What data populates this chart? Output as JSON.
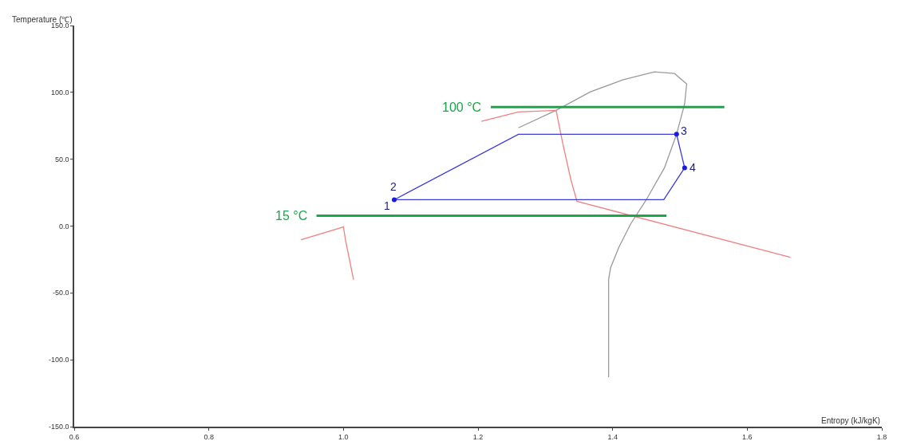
{
  "chart_data": {
    "type": "line",
    "xlabel": "Entropy (kJ/kgK)",
    "ylabel": "Temperature (℃)",
    "xlim": [
      0.6,
      1.8
    ],
    "xticks": [
      0.6,
      0.8,
      {
        "value": 1.0,
        "label": "1.0"
      },
      1.2,
      1.4,
      1.6,
      1.8
    ],
    "ylim": [
      -150,
      150
    ],
    "yticks": [
      {
        "value": -150,
        "label": "-150.0"
      },
      {
        "value": -100,
        "label": "-100.0"
      },
      {
        "value": -50,
        "label": "-50.0"
      },
      {
        "value": 0,
        "label": "0.0"
      },
      {
        "value": 50,
        "label": "50.0"
      },
      {
        "value": 100,
        "label": "100.0"
      },
      {
        "value": 150,
        "label": "150.0"
      }
    ],
    "legend": false,
    "line_style": "solid",
    "series": [
      {
        "color": "#9a9a9a",
        "x": [
          1.26,
          1.316,
          1.367,
          1.415,
          1.462,
          1.492,
          1.51,
          1.507,
          1.495,
          1.477,
          1.45,
          1.427,
          1.409,
          1.397,
          1.394,
          1.394
        ],
        "values": [
          73.5,
          86.6,
          100.4,
          109.3,
          115.3,
          114.1,
          106.3,
          91.4,
          68.7,
          43.6,
          19.7,
          1.8,
          -16.1,
          -31.1,
          -40.0,
          -113.0
        ]
      },
      {
        "color": "#f08080",
        "x": [
          1.205,
          1.26,
          1.316,
          1.326,
          1.338,
          1.347,
          1.664
        ],
        "values": [
          78.3,
          85.4,
          86.6,
          61.5,
          34.6,
          18.5,
          -23.3
        ]
      },
      {
        "color": "#f08080",
        "x": [
          0.937,
          1.0,
          1.003,
          1.015
        ],
        "values": [
          -10.2,
          -0.6,
          -10.2,
          -40.0
        ]
      },
      {
        "name": "100 °C",
        "color": "#1aa64a",
        "x": [
          1.219,
          1.566
        ],
        "values": [
          89,
          89
        ]
      },
      {
        "name": "15 °C",
        "color": "#1aa64a",
        "x": [
          0.96,
          1.48
        ],
        "values": [
          7.8,
          7.8
        ]
      },
      {
        "color": "#3b3bd9",
        "x": [
          1.0755,
          1.26,
          1.495,
          1.507
        ],
        "values": [
          19.7,
          68.7,
          68.7,
          43.6
        ]
      },
      {
        "color": "#3b3bd9",
        "x": [
          1.0755,
          1.476,
          1.507
        ],
        "values": [
          19.7,
          19.7,
          43.6
        ]
      },
      {
        "type": "scatter",
        "marker": "circle",
        "color": "#1a1ae0",
        "x": [
          1.0755,
          1.495,
          1.507
        ],
        "values": [
          19.7,
          68.7,
          43.6
        ]
      }
    ],
    "annotations": [
      {
        "text": "1",
        "x": 1.0755,
        "y": 19.7
      },
      {
        "text": "2",
        "x": 1.0755,
        "y": 19.7
      },
      {
        "text": "3",
        "x": 1.495,
        "y": 68.7
      },
      {
        "text": "4",
        "x": 1.507,
        "y": 43.6
      }
    ]
  }
}
